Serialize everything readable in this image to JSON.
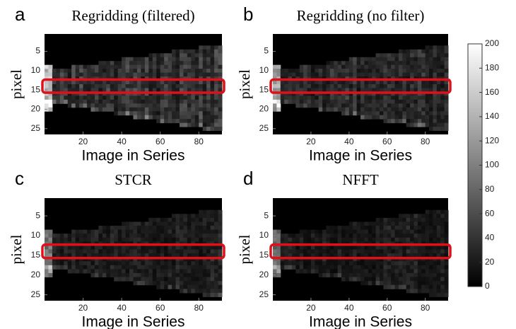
{
  "chart_data": [
    {
      "type": "heatmap",
      "label": "a",
      "title": "Regridding (filtered)",
      "xlabel": "Image in Series",
      "ylabel": "pixel",
      "xlim": [
        0,
        92
      ],
      "ylim": [
        26.5,
        0.5
      ],
      "xticks": [
        20,
        40,
        60,
        80
      ],
      "yticks": [
        5,
        10,
        15,
        20,
        25
      ]
    },
    {
      "type": "heatmap",
      "label": "b",
      "title": "Regridding (no filter)",
      "xlabel": "Image in Series",
      "ylabel": "pixel",
      "xlim": [
        0,
        92
      ],
      "ylim": [
        26.5,
        0.5
      ],
      "xticks": [
        20,
        40,
        60,
        80
      ],
      "yticks": [
        5,
        10,
        15,
        20,
        25
      ]
    },
    {
      "type": "heatmap",
      "label": "c",
      "title": "STCR",
      "xlabel": "Image in Series",
      "ylabel": "pixel",
      "xlim": [
        0,
        92
      ],
      "ylim": [
        26.5,
        0.5
      ],
      "xticks": [
        20,
        40,
        60,
        80
      ],
      "yticks": [
        5,
        10,
        15,
        20,
        25
      ]
    },
    {
      "type": "heatmap",
      "label": "d",
      "title": "NFFT",
      "xlabel": "Image in Series",
      "ylabel": "pixel",
      "xlim": [
        0,
        92
      ],
      "ylim": [
        26.5,
        0.5
      ],
      "xticks": [
        20,
        40,
        60,
        80
      ],
      "yticks": [
        5,
        10,
        15,
        20,
        25
      ]
    },
    {
      "type": "colorbar",
      "ylim": [
        0,
        200
      ],
      "yticks": [
        0,
        20,
        40,
        60,
        80,
        100,
        120,
        140,
        160,
        180,
        200
      ]
    }
  ]
}
